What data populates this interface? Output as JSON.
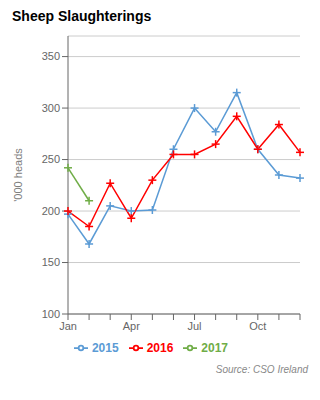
{
  "chart_data": {
    "type": "line",
    "title": "Sheep Slaughterings",
    "ylabel": "'000 heads",
    "source": "Source: CSO Ireland",
    "categories": [
      "Jan",
      null,
      null,
      "Apr",
      null,
      null,
      "Jul",
      null,
      null,
      "Oct",
      null,
      null
    ],
    "series": [
      {
        "name": "2015",
        "color": "#5b9bd5",
        "marker": "plus",
        "values": [
          197,
          168,
          205,
          200,
          201,
          260,
          300,
          277,
          315,
          260,
          235,
          232
        ]
      },
      {
        "name": "2016",
        "color": "#ff0000",
        "marker": "plus",
        "values": [
          200,
          185,
          227,
          193,
          230,
          255,
          255,
          265,
          292,
          260,
          284,
          257
        ]
      },
      {
        "name": "2017",
        "color": "#70ad47",
        "marker": "plus",
        "values": [
          242,
          210,
          null,
          null,
          null,
          null,
          null,
          null,
          null,
          null,
          null,
          null
        ]
      }
    ],
    "ylim": [
      100,
      370
    ],
    "yticks": [
      100,
      150,
      200,
      250,
      300,
      350
    ],
    "grid": true,
    "legend": "bottom"
  }
}
